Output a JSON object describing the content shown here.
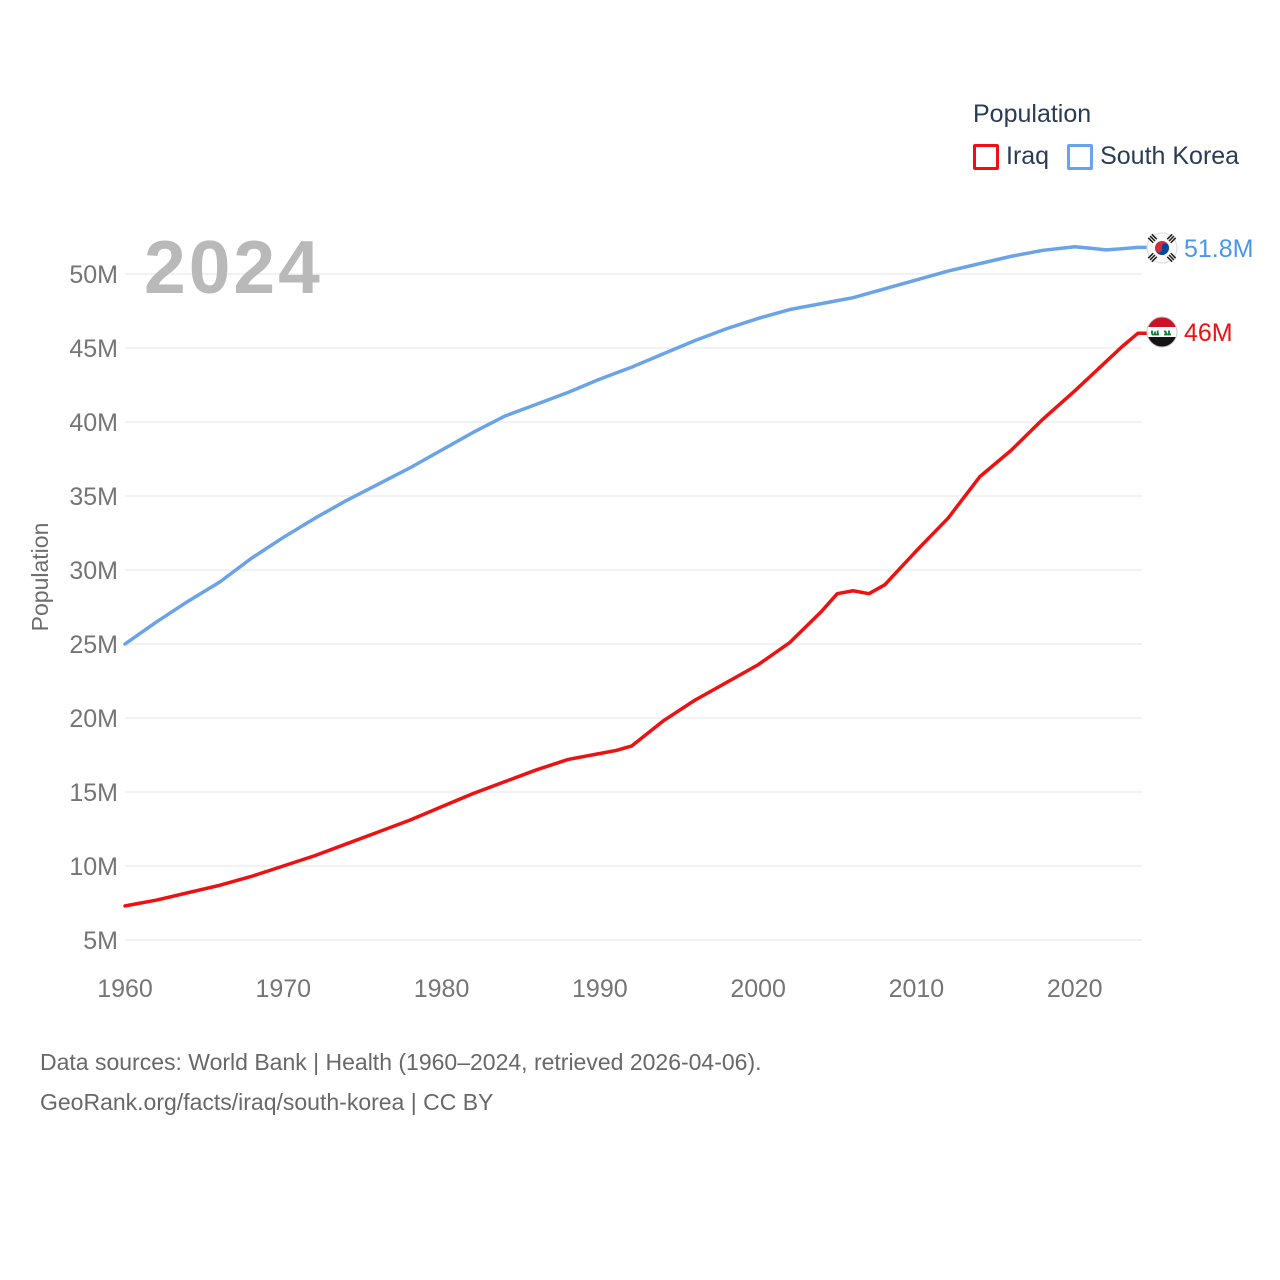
{
  "watermark": "2024",
  "legend": {
    "title": "Population",
    "items": [
      {
        "label": "Iraq",
        "color": "#ee1111"
      },
      {
        "label": "South Korea",
        "color": "#6ba3e8"
      }
    ]
  },
  "end_labels": {
    "south_korea": "51.8M",
    "iraq": "46M"
  },
  "icons": {
    "south_korea_flag": "south-korea-flag-icon",
    "iraq_flag": "iraq-flag-icon"
  },
  "chart_data": {
    "type": "line",
    "title": "Population",
    "xlabel": "",
    "ylabel": "Population",
    "legend_position": "top-right",
    "grid": "horizontal-only",
    "grid_color": "#ebebeb",
    "xlim": [
      1960,
      2024
    ],
    "ylim_millions": [
      5,
      50
    ],
    "x_ticks": [
      1960,
      1970,
      1980,
      1990,
      2000,
      2010,
      2020
    ],
    "y_ticks_millions": [
      5,
      10,
      15,
      20,
      25,
      30,
      35,
      40,
      45,
      50
    ],
    "y_tick_suffix": "M",
    "x": [
      1960,
      1962,
      1964,
      1966,
      1968,
      1970,
      1972,
      1974,
      1976,
      1978,
      1980,
      1982,
      1984,
      1986,
      1988,
      1990,
      1991,
      1992,
      1994,
      1996,
      1998,
      2000,
      2002,
      2004,
      2005,
      2006,
      2007,
      2008,
      2010,
      2012,
      2014,
      2016,
      2018,
      2020,
      2021,
      2022,
      2023,
      2024
    ],
    "series": [
      {
        "name": "South Korea",
        "color": "#6ba3e8",
        "end_label": "51.8M",
        "values_millions": [
          25.0,
          26.5,
          27.9,
          29.2,
          30.8,
          32.2,
          33.5,
          34.7,
          35.8,
          36.9,
          38.1,
          39.3,
          40.4,
          41.2,
          42.0,
          42.9,
          43.3,
          43.7,
          44.6,
          45.5,
          46.3,
          47.0,
          47.6,
          48.0,
          48.2,
          48.4,
          48.7,
          49.0,
          49.6,
          50.2,
          50.7,
          51.2,
          51.6,
          51.84,
          51.74,
          51.63,
          51.71,
          51.8
        ]
      },
      {
        "name": "Iraq",
        "color": "#ee1111",
        "end_label": "46M",
        "values_millions": [
          7.3,
          7.7,
          8.2,
          8.7,
          9.3,
          10.0,
          10.7,
          11.5,
          12.3,
          13.1,
          14.0,
          14.9,
          15.7,
          16.5,
          17.2,
          17.6,
          17.8,
          18.1,
          19.8,
          21.2,
          22.4,
          23.6,
          25.1,
          27.2,
          28.4,
          28.6,
          28.4,
          29.0,
          31.3,
          33.5,
          36.3,
          38.1,
          40.2,
          42.1,
          43.1,
          44.1,
          45.1,
          46.0
        ]
      }
    ]
  },
  "footer": {
    "line1": "Data sources: World Bank | Health (1960–2024, retrieved 2026-04-06).",
    "line2": "GeoRank.org/facts/iraq/south-korea | CC BY"
  }
}
